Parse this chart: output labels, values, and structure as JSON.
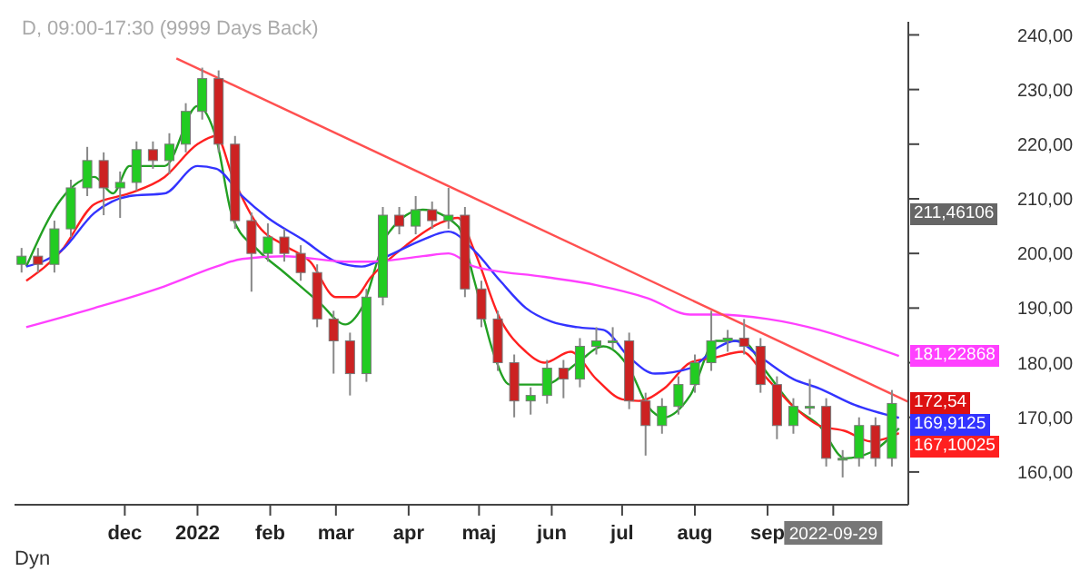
{
  "chart_data": {
    "type": "candlestick",
    "title": "D, 09:00-17:30 (9999 Days Back)",
    "x": [
      "2021-10-18",
      "2021-10-25",
      "2021-11-01",
      "2021-11-08",
      "2021-11-15",
      "2021-11-22",
      "2021-11-29",
      "2021-12-06",
      "2021-12-13",
      "2021-12-20",
      "2021-12-27",
      "2022-01-03",
      "2022-01-10",
      "2022-01-17",
      "2022-01-24",
      "2022-01-31",
      "2022-02-07",
      "2022-02-14",
      "2022-02-21",
      "2022-02-28",
      "2022-03-07",
      "2022-03-14",
      "2022-03-21",
      "2022-03-28",
      "2022-04-04",
      "2022-04-11",
      "2022-04-18",
      "2022-04-25",
      "2022-05-02",
      "2022-05-09",
      "2022-05-16",
      "2022-05-23",
      "2022-05-30",
      "2022-06-06",
      "2022-06-13",
      "2022-06-20",
      "2022-06-27",
      "2022-07-04",
      "2022-07-11",
      "2022-07-18",
      "2022-07-25",
      "2022-08-01",
      "2022-08-08",
      "2022-08-15",
      "2022-08-22",
      "2022-08-29",
      "2022-09-05",
      "2022-09-12",
      "2022-09-19",
      "2022-09-26",
      "2022-10-03",
      "2022-10-10",
      "2022-10-17",
      "2022-10-24"
    ],
    "ohlc": [
      [
        198,
        201,
        196.5,
        199.5
      ],
      [
        199.5,
        201,
        196.5,
        198
      ],
      [
        198,
        206,
        196.5,
        204.5
      ],
      [
        204.5,
        213.5,
        203,
        212
      ],
      [
        212,
        219.5,
        210.5,
        217
      ],
      [
        217,
        218.5,
        207,
        212
      ],
      [
        212,
        215,
        206.5,
        213
      ],
      [
        213,
        220.5,
        211.5,
        219
      ],
      [
        219,
        220.5,
        215.5,
        217
      ],
      [
        217,
        222,
        214.5,
        220
      ],
      [
        220,
        227.5,
        218.5,
        226
      ],
      [
        226,
        234,
        224.5,
        232
      ],
      [
        232,
        233.5,
        218.5,
        220
      ],
      [
        220,
        221.5,
        204.5,
        206
      ],
      [
        206,
        207.5,
        193,
        200
      ],
      [
        200,
        205.5,
        198.5,
        203
      ],
      [
        203,
        204.5,
        198.5,
        200
      ],
      [
        200,
        201.5,
        195,
        196.5
      ],
      [
        196.5,
        198,
        186.5,
        188
      ],
      [
        188,
        189.5,
        178,
        184
      ],
      [
        184,
        185.5,
        174,
        178
      ],
      [
        178,
        193.5,
        176.5,
        192
      ],
      [
        192,
        208.5,
        190.5,
        207
      ],
      [
        207,
        208.5,
        203.5,
        205
      ],
      [
        205,
        210.5,
        203.5,
        208
      ],
      [
        208,
        209.5,
        204.5,
        206
      ],
      [
        206,
        212,
        204.5,
        207
      ],
      [
        207,
        208.5,
        192,
        193.5
      ],
      [
        193.5,
        195,
        186.5,
        188
      ],
      [
        188,
        189.5,
        178.5,
        180
      ],
      [
        180,
        181.5,
        170,
        173
      ],
      [
        173,
        175.5,
        170.5,
        174
      ],
      [
        174,
        180.5,
        172.5,
        179
      ],
      [
        179,
        180.5,
        173.5,
        177
      ],
      [
        177,
        184.5,
        175.5,
        183
      ],
      [
        183,
        186.5,
        181.5,
        184
      ],
      [
        184,
        186.5,
        182.5,
        184
      ],
      [
        184,
        185.5,
        171.5,
        173
      ],
      [
        173,
        174.5,
        163,
        168.5
      ],
      [
        168.5,
        173.5,
        167,
        172
      ],
      [
        172,
        177.5,
        170.5,
        176
      ],
      [
        176,
        181.5,
        174.5,
        180
      ],
      [
        180,
        189.5,
        178.5,
        184
      ],
      [
        184,
        186,
        182,
        184.5
      ],
      [
        184.5,
        188,
        181.5,
        183
      ],
      [
        183,
        184.5,
        174.5,
        176
      ],
      [
        176,
        177.5,
        166,
        168.5
      ],
      [
        168.5,
        173.5,
        167,
        172
      ],
      [
        172,
        177,
        170.5,
        172
      ],
      [
        172,
        173.5,
        161,
        162.5
      ],
      [
        162.5,
        164,
        159,
        162.5
      ],
      [
        162.5,
        170,
        161,
        168.5
      ],
      [
        168.5,
        170,
        161,
        162.5
      ],
      [
        162.5,
        175,
        161,
        172.54
      ]
    ],
    "series": [
      {
        "type": "line",
        "color": "#22a022",
        "x": [
          "2021-10-20",
          "2021-11-04",
          "2021-11-18",
          "2021-11-26",
          "2021-12-03",
          "2021-12-18",
          "2022-01-01",
          "2022-01-09",
          "2022-01-16",
          "2022-01-27",
          "2022-02-07",
          "2022-02-22",
          "2022-03-05",
          "2022-03-12",
          "2022-03-23",
          "2022-04-07",
          "2022-04-22",
          "2022-04-29",
          "2022-05-07",
          "2022-05-14",
          "2022-05-29",
          "2022-06-12",
          "2022-06-23",
          "2022-07-04",
          "2022-07-12",
          "2022-07-19",
          "2022-07-30",
          "2022-08-10",
          "2022-08-21",
          "2022-09-01",
          "2022-09-12",
          "2022-09-23",
          "2022-10-04",
          "2022-10-15",
          "2022-10-27"
        ],
        "values": [
          197.6,
          210,
          214,
          211,
          216,
          216,
          227,
          221,
          206.5,
          200.5,
          196.5,
          191,
          187,
          190,
          203.5,
          208,
          205,
          195,
          182,
          176,
          176,
          180,
          183,
          179,
          172,
          170,
          174,
          184,
          184,
          178,
          172,
          168.5,
          162.5,
          163.6,
          168
        ]
      },
      {
        "type": "line",
        "color": "#ff2020",
        "x": [
          "2021-10-20",
          "2021-11-04",
          "2021-11-18",
          "2021-12-03",
          "2021-12-18",
          "2022-01-01",
          "2022-01-09",
          "2022-01-16",
          "2022-01-27",
          "2022-02-07",
          "2022-02-18",
          "2022-03-01",
          "2022-03-09",
          "2022-03-16",
          "2022-03-31",
          "2022-04-14",
          "2022-04-22",
          "2022-04-29",
          "2022-05-10",
          "2022-05-21",
          "2022-05-29",
          "2022-06-09",
          "2022-06-20",
          "2022-07-01",
          "2022-07-08",
          "2022-07-19",
          "2022-07-30",
          "2022-08-10",
          "2022-08-21",
          "2022-09-01",
          "2022-09-12",
          "2022-09-23",
          "2022-10-04",
          "2022-10-15",
          "2022-10-27"
        ],
        "values": [
          195,
          200.5,
          209,
          211,
          214,
          220,
          221.5,
          214,
          205,
          201.5,
          198.5,
          192,
          192,
          195.7,
          201.5,
          205.5,
          206.5,
          200.5,
          188,
          182,
          180,
          182,
          177,
          173.3,
          173,
          175.3,
          180,
          181,
          182,
          177,
          172,
          168.5,
          167.5,
          165.6,
          167.10025
        ],
        "value_labels": [
          null,
          null,
          null,
          null,
          null,
          null,
          null,
          null,
          null,
          null,
          null,
          null,
          null,
          null,
          null,
          null,
          null,
          null,
          null,
          null,
          null,
          null,
          null,
          null,
          null,
          null,
          null,
          null,
          null,
          null,
          null,
          null,
          null,
          null,
          "167,10025"
        ]
      },
      {
        "type": "line",
        "color": "#3333ff",
        "x": [
          "2021-10-20",
          "2021-11-04",
          "2021-11-18",
          "2021-12-03",
          "2021-12-18",
          "2022-01-01",
          "2022-01-09",
          "2022-01-20",
          "2022-01-31",
          "2022-02-15",
          "2022-03-01",
          "2022-03-12",
          "2022-03-23",
          "2022-04-07",
          "2022-04-18",
          "2022-04-29",
          "2022-05-10",
          "2022-05-21",
          "2022-06-01",
          "2022-06-12",
          "2022-06-23",
          "2022-07-04",
          "2022-07-15",
          "2022-07-30",
          "2022-08-10",
          "2022-08-18",
          "2022-08-29",
          "2022-09-12",
          "2022-09-23",
          "2022-10-08",
          "2022-10-27"
        ],
        "values": [
          197.6,
          200.5,
          207.4,
          210.5,
          211,
          216,
          215.5,
          210.5,
          206.5,
          202.5,
          198.5,
          197.6,
          199.5,
          202.5,
          204,
          200.5,
          195,
          190,
          187.5,
          186.5,
          186,
          181,
          178,
          179,
          182.6,
          184,
          181,
          177,
          175.3,
          172.3,
          169.9125
        ],
        "value_labels": [
          null,
          null,
          null,
          null,
          null,
          null,
          null,
          null,
          null,
          null,
          null,
          null,
          null,
          null,
          null,
          null,
          null,
          null,
          null,
          null,
          null,
          null,
          null,
          null,
          null,
          null,
          null,
          null,
          null,
          null,
          "169,9125"
        ]
      },
      {
        "type": "line",
        "color": "#ff40ff",
        "x": [
          "2021-10-20",
          "2021-11-18",
          "2021-12-18",
          "2022-01-09",
          "2022-01-20",
          "2022-02-07",
          "2022-03-05",
          "2022-03-16",
          "2022-04-07",
          "2022-04-18",
          "2022-04-29",
          "2022-05-29",
          "2022-06-20",
          "2022-07-12",
          "2022-07-30",
          "2022-08-10",
          "2022-09-01",
          "2022-09-23",
          "2022-10-08",
          "2022-10-27"
        ],
        "values": [
          186.5,
          190,
          194,
          197.6,
          199,
          199.5,
          198.5,
          198.5,
          199.5,
          200,
          197.6,
          195.7,
          194.2,
          191.8,
          188.8,
          188.8,
          188,
          186,
          184,
          181.22868
        ],
        "value_labels": [
          null,
          null,
          null,
          null,
          null,
          null,
          null,
          null,
          null,
          null,
          null,
          null,
          null,
          null,
          null,
          null,
          null,
          null,
          null,
          "181,22868"
        ]
      },
      {
        "type": "line",
        "color": "#ff5050",
        "x": [
          "2021-12-23",
          "2022-10-31"
        ],
        "values": [
          235.7,
          172.85
        ]
      }
    ],
    "marker": "none",
    "xlim": [
      "2021-10-15",
      "2022-10-31"
    ],
    "xticks": [
      {
        "value": "2021-12-01",
        "label": "dec"
      },
      {
        "value": "2022-01-01",
        "label": "2022"
      },
      {
        "value": "2022-02-01",
        "label": "feb"
      },
      {
        "value": "2022-03-01",
        "label": "mar"
      },
      {
        "value": "2022-04-01",
        "label": "apr"
      },
      {
        "value": "2022-05-01",
        "label": "maj"
      },
      {
        "value": "2022-06-01",
        "label": "jun"
      },
      {
        "value": "2022-07-01",
        "label": "jul"
      },
      {
        "value": "2022-08-01",
        "label": "aug"
      },
      {
        "value": "2022-09-01",
        "label": "sep"
      },
      {
        "value": "2022-09-29",
        "label": "2022-09-29"
      }
    ],
    "ylim": [
      154,
      242.4
    ],
    "yticks": [
      {
        "value": 160,
        "label": "160,00"
      },
      {
        "value": 170,
        "label": "170,00"
      },
      {
        "value": 180,
        "label": "180,00"
      },
      {
        "value": 190,
        "label": "190,00"
      },
      {
        "value": 200,
        "label": "200,00"
      },
      {
        "value": 210,
        "label": "210,00"
      },
      {
        "value": 220,
        "label": "220,00"
      },
      {
        "value": 230,
        "label": "230,00"
      },
      {
        "value": 240,
        "label": "240,00"
      }
    ],
    "annotations": [
      "211,46106",
      {
        "text": "172,54",
        "x": "2022-10-24",
        "y": 172.54
      },
      "Dyn"
    ]
  }
}
